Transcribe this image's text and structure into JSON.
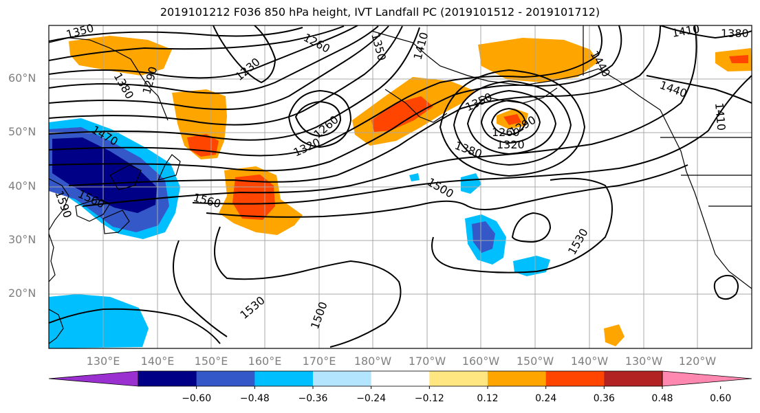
{
  "title": "2019101212 F036 850 hPa height, IVT Landfall PC (2019101512 - 2019101712)",
  "lat_labels": [
    "60°N",
    "50°N",
    "40°N",
    "30°N",
    "20°N"
  ],
  "lon_labels": [
    "130°E",
    "140°E",
    "150°E",
    "160°E",
    "170°E",
    "180°W",
    "170°W",
    "160°W",
    "150°W",
    "140°W",
    "130°W",
    "120°W"
  ],
  "contour_labels": [
    "1350",
    "1380",
    "1290",
    "1260",
    "1230",
    "1350",
    "1410",
    "1470",
    "1560",
    "1590",
    "1260",
    "1320",
    "1560",
    "1500",
    "1350",
    "1260",
    "1290",
    "1320",
    "1380",
    "1410",
    "1380",
    "1440",
    "1410",
    "1440",
    "1530",
    "1530",
    "1500"
  ],
  "colorbar": {
    "colors": [
      "#9b30d0",
      "#000086",
      "#3558c8",
      "#00bfff",
      "#b3e5ff",
      "#ffffff",
      "#ffe680",
      "#ffa500",
      "#ff4500",
      "#b22222",
      "#ff88b0"
    ],
    "tick_labels": [
      "−0.60",
      "−0.48",
      "−0.36",
      "−0.24",
      "−0.12",
      "0.12",
      "0.24",
      "0.36",
      "0.48",
      "0.60"
    ]
  }
}
